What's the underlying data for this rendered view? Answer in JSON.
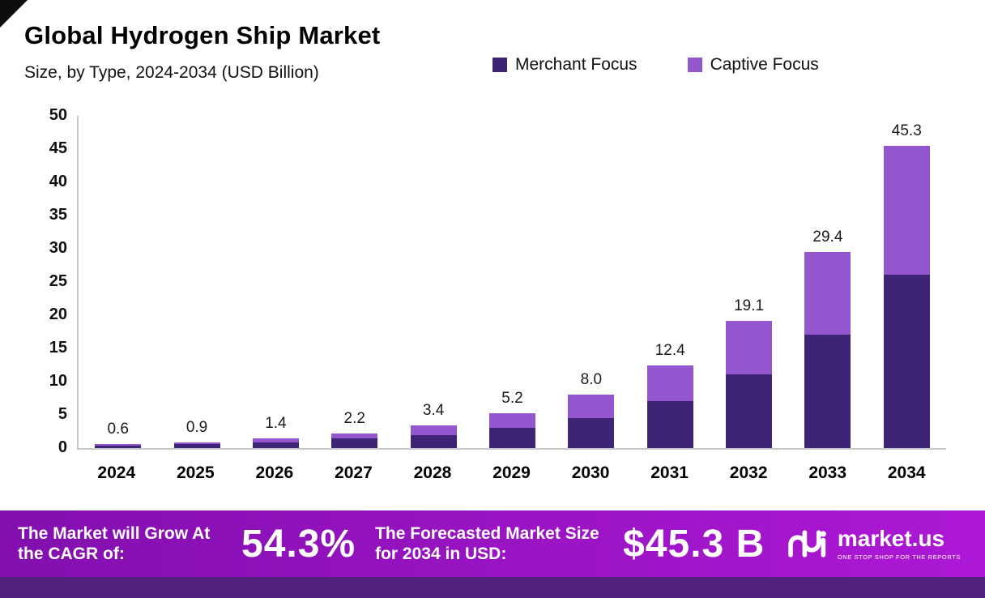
{
  "header": {
    "title": "Global Hydrogen Ship Market",
    "subtitle": "Size, by Type, 2024-2034 (USD Billion)"
  },
  "legend": [
    {
      "label": "Merchant Focus",
      "color": "#3f2377"
    },
    {
      "label": "Captive Focus",
      "color": "#9456ce"
    }
  ],
  "chart_data": {
    "type": "bar",
    "stacked": true,
    "title": "Global Hydrogen Ship Market",
    "subtitle": "Size, by Type, 2024-2034 (USD Billion)",
    "xlabel": "",
    "ylabel": "USD Billion",
    "ylim": [
      0,
      50
    ],
    "yticks": [
      "0",
      "5",
      "10",
      "15",
      "20",
      "25",
      "30",
      "35",
      "40",
      "45",
      "50"
    ],
    "grid": false,
    "legend_position": "top-right",
    "categories": [
      "2024",
      "2025",
      "2026",
      "2027",
      "2028",
      "2029",
      "2030",
      "2031",
      "2032",
      "2033",
      "2034"
    ],
    "series": [
      {
        "name": "Merchant Focus",
        "color": "#3f2377",
        "values": [
          0.35,
          0.55,
          0.9,
          1.4,
          2.0,
          3.0,
          4.5,
          7.0,
          11.0,
          17.0,
          26.0
        ]
      },
      {
        "name": "Captive Focus",
        "color": "#9456ce",
        "values": [
          0.25,
          0.35,
          0.5,
          0.8,
          1.4,
          2.2,
          3.5,
          5.4,
          8.1,
          12.4,
          19.3
        ]
      }
    ],
    "totals": [
      0.6,
      0.9,
      1.4,
      2.2,
      3.4,
      5.2,
      8.0,
      12.4,
      19.1,
      29.4,
      45.3
    ],
    "total_labels": [
      "0.6",
      "0.9",
      "1.4",
      "2.2",
      "3.4",
      "5.2",
      "8.0",
      "12.4",
      "19.1",
      "29.4",
      "45.3"
    ]
  },
  "banner": {
    "cagr_label": "The Market will Grow At the CAGR of:",
    "cagr_value": "54.3%",
    "forecast_label": "The Forecasted Market Size for 2034 in USD:",
    "forecast_value": "$45.3 B",
    "logo_text": "market.us",
    "logo_tagline": "ONE STOP SHOP FOR THE REPORTS"
  }
}
